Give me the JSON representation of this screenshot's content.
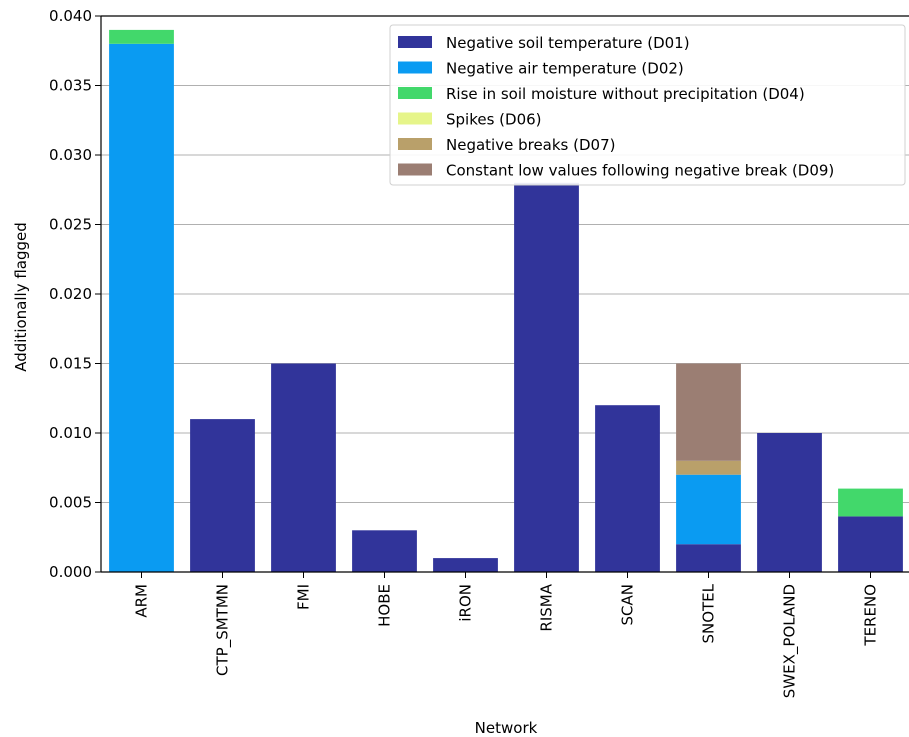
{
  "chart_data": {
    "type": "bar",
    "stacked": true,
    "xlabel": "Network",
    "ylabel": "Additionally flagged",
    "ylim": [
      0,
      0.04
    ],
    "yticks": [
      "0.000",
      "0.005",
      "0.010",
      "0.015",
      "0.020",
      "0.025",
      "0.030",
      "0.035",
      "0.040"
    ],
    "grid": true,
    "legend_position": "top-right",
    "categories": [
      "ARM",
      "CTP_SMTMN",
      "FMI",
      "HOBE",
      "iRON",
      "RISMA",
      "SCAN",
      "SNOTEL",
      "SWEX_POLAND",
      "TERENO"
    ],
    "series": [
      {
        "name": "Negative soil temperature (D01)",
        "color": "#31349a",
        "values": [
          0,
          0.011,
          0.015,
          0.003,
          0.001,
          0.028,
          0.012,
          0.002,
          0.01,
          0.004
        ]
      },
      {
        "name": "Negative air temperature (D02)",
        "color": "#0a9bf2",
        "values": [
          0.038,
          0,
          0,
          0,
          0,
          0,
          0,
          0.005,
          0,
          0
        ]
      },
      {
        "name": "Rise in soil moisture without precipitation (D04)",
        "color": "#42d86b",
        "values": [
          0.001,
          0,
          0,
          0,
          0,
          0,
          0,
          0,
          0,
          0.002
        ]
      },
      {
        "name": "Spikes (D06)",
        "color": "#e6f58a",
        "values": [
          0,
          0,
          0,
          0,
          0,
          0,
          0,
          0,
          0,
          0
        ]
      },
      {
        "name": "Negative breaks (D07)",
        "color": "#b9a06a",
        "values": [
          0,
          0,
          0,
          0,
          0,
          0,
          0,
          0.001,
          0,
          0
        ]
      },
      {
        "name": "Constant low values following negative break (D09)",
        "color": "#9b7e73",
        "values": [
          0,
          0,
          0,
          0,
          0,
          0,
          0,
          0.007,
          0,
          0
        ]
      }
    ]
  }
}
